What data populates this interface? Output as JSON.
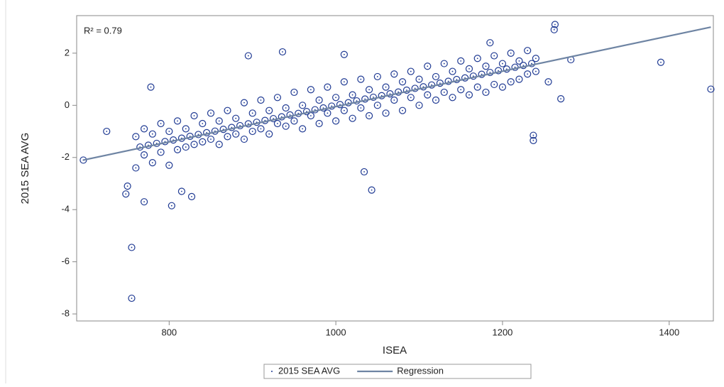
{
  "chart_data": {
    "type": "scatter",
    "annotation": "R² = 0.79",
    "x_label": "ISEA",
    "y_label": "2015 SEA AVG",
    "xlim": [
      689,
      1453
    ],
    "ylim": [
      -8.27,
      3.44
    ],
    "xticks": [
      800,
      1000,
      1200,
      1400
    ],
    "yticks": [
      -8,
      -6,
      -4,
      -2,
      0,
      2
    ],
    "grid": false,
    "legend": "bottom",
    "series": [
      {
        "name": "2015 SEA AVG",
        "color": "#1f3a93",
        "type": "scatter",
        "x": [
          760,
          760,
          770,
          770,
          780,
          780,
          790,
          790,
          800,
          800,
          810,
          810,
          820,
          820,
          830,
          830,
          840,
          840,
          850,
          850,
          860,
          860,
          870,
          870,
          880,
          880,
          890,
          890,
          900,
          900,
          910,
          910,
          920,
          920,
          930,
          930,
          940,
          940,
          950,
          950,
          960,
          960,
          970,
          970,
          980,
          980,
          990,
          990,
          1000,
          1000,
          1010,
          1010,
          1020,
          1020,
          1030,
          1030,
          1040,
          1040,
          1050,
          1050,
          1060,
          1060,
          1070,
          1070,
          1080,
          1080,
          1090,
          1090,
          1100,
          1100,
          1110,
          1110,
          1120,
          1120,
          1130,
          1130,
          1140,
          1140,
          1150,
          1150,
          1160,
          1160,
          1170,
          1170,
          1180,
          1180,
          1190,
          1190,
          1200,
          1200,
          1210,
          1210,
          1220,
          1220,
          1230,
          1230,
          1240,
          1240,
          765,
          775,
          785,
          795,
          805,
          815,
          825,
          835,
          845,
          855,
          865,
          875,
          885,
          895,
          905,
          915,
          925,
          935,
          945,
          955,
          965,
          975,
          985,
          995,
          1005,
          1015,
          1025,
          1035,
          1045,
          1055,
          1065,
          1075,
          1085,
          1095,
          1105,
          1115,
          1125,
          1135,
          1145,
          1155,
          1165,
          1175,
          1185,
          1195,
          1205,
          1215,
          1225,
          1235,
          755,
          755,
          803,
          1390,
          1450,
          1263,
          1262,
          1237,
          1237,
          1043,
          1034,
          895,
          936,
          1010,
          1185,
          778,
          725,
          697,
          750,
          748,
          770,
          827,
          815,
          1270,
          1282,
          1255
        ],
        "values": [
          -1.2,
          -2.4,
          -0.9,
          -1.9,
          -1.1,
          -2.2,
          -0.7,
          -1.8,
          -1.0,
          -2.3,
          -0.6,
          -1.7,
          -0.9,
          -1.6,
          -0.4,
          -1.5,
          -0.7,
          -1.4,
          -0.3,
          -1.3,
          -0.6,
          -1.5,
          -0.2,
          -1.2,
          -0.5,
          -1.1,
          0.1,
          -1.3,
          -0.3,
          -1.0,
          0.2,
          -0.9,
          -0.2,
          -1.1,
          0.3,
          -0.7,
          -0.1,
          -0.8,
          0.5,
          -0.6,
          0.0,
          -0.9,
          0.6,
          -0.4,
          0.2,
          -0.7,
          0.7,
          -0.3,
          0.3,
          -0.6,
          0.9,
          -0.2,
          0.4,
          -0.5,
          1.0,
          -0.1,
          0.6,
          -0.4,
          1.1,
          0.0,
          0.7,
          -0.3,
          1.2,
          0.2,
          0.9,
          -0.2,
          1.3,
          0.3,
          1.0,
          0.0,
          1.5,
          0.4,
          1.1,
          0.2,
          1.6,
          0.5,
          1.3,
          0.3,
          1.7,
          0.6,
          1.4,
          0.4,
          1.8,
          0.7,
          1.5,
          0.5,
          1.9,
          0.8,
          1.6,
          0.7,
          2.0,
          0.9,
          1.7,
          1.0,
          2.1,
          1.2,
          1.8,
          1.3,
          -1.6,
          -1.53,
          -1.46,
          -1.39,
          -1.33,
          -1.26,
          -1.19,
          -1.12,
          -1.05,
          -0.99,
          -0.92,
          -0.85,
          -0.78,
          -0.71,
          -0.65,
          -0.58,
          -0.51,
          -0.44,
          -0.37,
          -0.31,
          -0.24,
          -0.17,
          -0.1,
          -0.03,
          0.03,
          0.1,
          0.17,
          0.24,
          0.31,
          0.37,
          0.44,
          0.51,
          0.58,
          0.65,
          0.71,
          0.78,
          0.85,
          0.92,
          0.99,
          1.05,
          1.12,
          1.19,
          1.26,
          1.33,
          1.39,
          1.46,
          1.53,
          1.6,
          -5.45,
          -7.4,
          -3.85,
          1.65,
          0.62,
          3.1,
          2.9,
          -1.15,
          -1.35,
          -3.25,
          -2.55,
          1.9,
          2.05,
          1.95,
          2.4,
          0.7,
          -1.0,
          -2.1,
          -3.1,
          -3.4,
          -3.7,
          -3.5,
          -3.3,
          0.25,
          1.75,
          0.9
        ]
      },
      {
        "name": "Regression",
        "color": "#6e84a3",
        "type": "line",
        "x": [
          697,
          1450
        ],
        "values": [
          -2.1,
          3.0
        ]
      }
    ]
  }
}
